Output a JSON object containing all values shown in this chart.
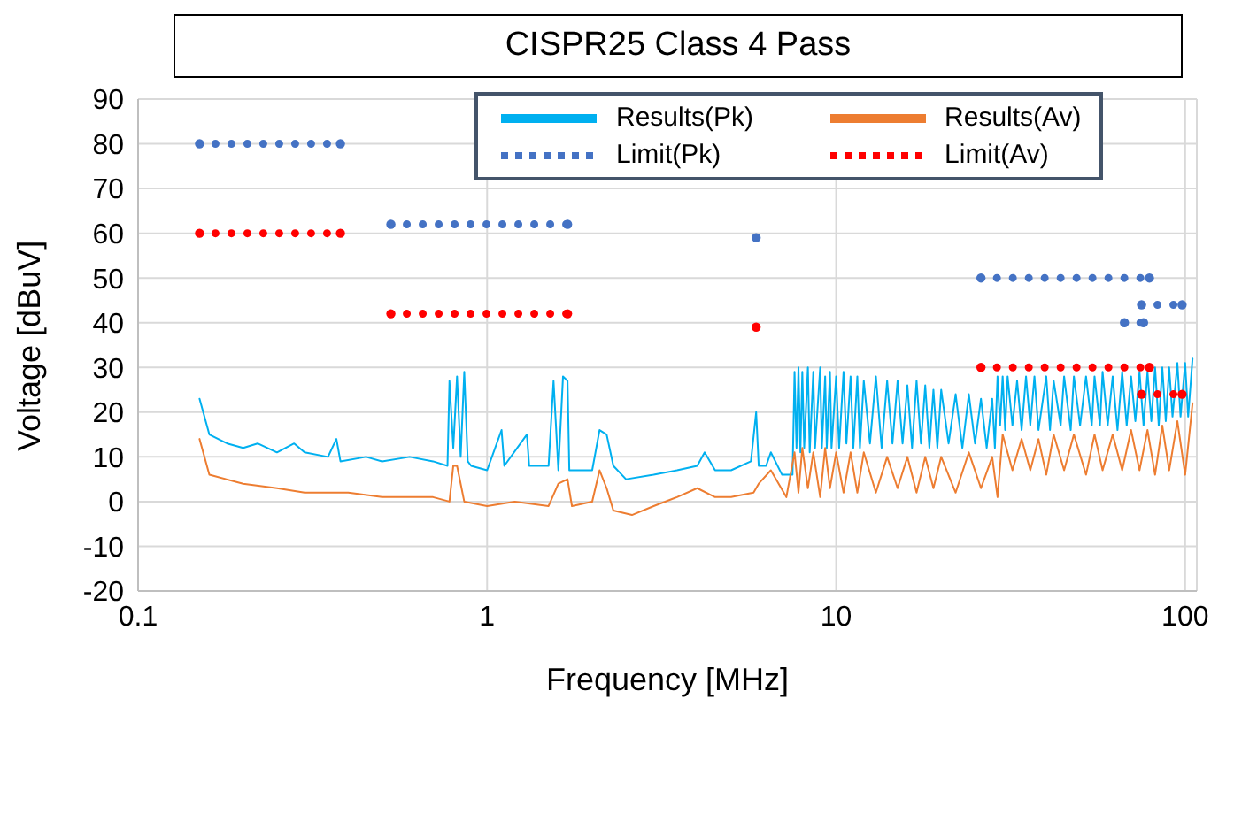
{
  "chart_data": {
    "type": "line",
    "title": "CISPR25 Class 4 Pass",
    "xlabel": "Frequency [MHz]",
    "ylabel": "Voltage [dBuV]",
    "log": "x",
    "xlim": [
      0.1,
      108
    ],
    "xticks": [
      0.1,
      1,
      10,
      100
    ],
    "ylim": [
      -20,
      90
    ],
    "yticks": [
      -20,
      -10,
      0,
      10,
      20,
      30,
      40,
      50,
      60,
      70,
      80,
      90
    ],
    "grid": true,
    "legend": "top",
    "series": [
      {
        "name": "Results(Pk)",
        "color": "#00b0f0",
        "marker": "none",
        "line_style": "solid",
        "x": [
          0.15,
          0.16,
          0.18,
          0.2,
          0.22,
          0.25,
          0.28,
          0.3,
          0.35,
          0.37,
          0.38,
          0.45,
          0.5,
          0.6,
          0.7,
          0.77,
          0.78,
          0.8,
          0.82,
          0.84,
          0.86,
          0.88,
          0.9,
          1.0,
          1.1,
          1.12,
          1.3,
          1.32,
          1.5,
          1.55,
          1.6,
          1.65,
          1.7,
          1.72,
          2.0,
          2.1,
          2.2,
          2.3,
          2.5,
          3,
          3.5,
          4,
          4.2,
          4.5,
          5,
          5.7,
          5.9,
          6.0,
          6.3,
          6.5,
          7,
          7.5,
          7.6,
          7.7,
          7.8,
          7.9,
          8,
          8.1,
          8.3,
          8.4,
          8.6,
          8.7,
          9,
          9.1,
          9.3,
          9.4,
          9.6,
          9.7,
          10,
          10.2,
          10.5,
          10.7,
          11,
          11.2,
          11.5,
          11.7,
          12,
          12.5,
          13,
          13.5,
          14,
          14.5,
          15,
          15.5,
          16,
          16.5,
          17,
          17.5,
          18,
          18.5,
          19,
          19.5,
          20,
          21,
          22,
          23,
          24,
          25,
          26,
          27,
          28,
          28.5,
          29,
          29.5,
          30,
          30.5,
          31,
          32,
          33,
          34,
          35,
          36,
          37,
          38,
          40,
          41,
          42,
          44,
          45,
          47,
          48,
          50,
          52,
          54,
          55,
          57,
          58,
          60,
          62,
          64,
          66,
          68,
          70,
          72,
          74,
          76,
          78,
          80,
          82,
          84,
          86,
          88,
          90,
          92,
          95,
          97,
          100,
          102,
          105
        ],
        "values": [
          23,
          15,
          13,
          12,
          13,
          11,
          13,
          11,
          10,
          14,
          9,
          10,
          9,
          10,
          9,
          8,
          27,
          12,
          28,
          10,
          29,
          9,
          8,
          7,
          16,
          8,
          15,
          8,
          8,
          27,
          7,
          28,
          27,
          7,
          7,
          16,
          15,
          8,
          5,
          6,
          7,
          8,
          11,
          7,
          7,
          9,
          20,
          8,
          8,
          11,
          6,
          6,
          29,
          12,
          30,
          11,
          29,
          12,
          30,
          11,
          29,
          12,
          30,
          12,
          28,
          12,
          29,
          12,
          28,
          12,
          29,
          13,
          28,
          12,
          28,
          12,
          27,
          13,
          28,
          12,
          27,
          13,
          27,
          13,
          26,
          12,
          27,
          13,
          26,
          12,
          25,
          12,
          25,
          13,
          24,
          12,
          24,
          13,
          23,
          12,
          23,
          12,
          28,
          17,
          28,
          16,
          28,
          17,
          27,
          16,
          28,
          17,
          28,
          16,
          28,
          16,
          27,
          17,
          28,
          16,
          28,
          17,
          28,
          17,
          28,
          17,
          29,
          17,
          28,
          16,
          29,
          17,
          28,
          18,
          29,
          17,
          29,
          18,
          30,
          17,
          30,
          18,
          30,
          19,
          31,
          19,
          31,
          19,
          32
        ]
      },
      {
        "name": "Results(Av)",
        "color": "#ed7d31",
        "marker": "none",
        "line_style": "solid",
        "x": [
          0.15,
          0.16,
          0.2,
          0.25,
          0.3,
          0.4,
          0.5,
          0.7,
          0.78,
          0.8,
          0.82,
          0.86,
          1,
          1.2,
          1.5,
          1.6,
          1.7,
          1.75,
          2.0,
          2.1,
          2.2,
          2.3,
          2.6,
          3,
          3.5,
          4,
          4.5,
          5,
          5.8,
          6,
          6.5,
          7.2,
          7.6,
          7.8,
          8,
          8.3,
          8.6,
          9,
          9.3,
          9.6,
          10,
          10.5,
          11,
          11.5,
          12,
          13,
          14,
          15,
          16,
          17,
          18,
          19,
          20,
          22,
          24,
          26,
          28,
          29,
          30,
          32,
          34,
          36,
          38,
          40,
          42,
          45,
          48,
          52,
          55,
          58,
          62,
          66,
          70,
          74,
          78,
          82,
          86,
          90,
          95,
          100,
          105
        ],
        "values": [
          14,
          6,
          4,
          3,
          2,
          2,
          1,
          1,
          0,
          8,
          8,
          0,
          -1,
          0,
          -1,
          4,
          5,
          -1,
          0,
          7,
          3,
          -2,
          -3,
          -1,
          1,
          3,
          1,
          1,
          2,
          4,
          7,
          1,
          11,
          2,
          12,
          3,
          11,
          1,
          12,
          3,
          11,
          2,
          11,
          2,
          11,
          2,
          10,
          3,
          10,
          2,
          10,
          3,
          10,
          2,
          11,
          3,
          10,
          1,
          15,
          7,
          14,
          7,
          14,
          6,
          15,
          7,
          15,
          6,
          15,
          7,
          15,
          7,
          16,
          7,
          16,
          6,
          17,
          7,
          18,
          6,
          22
        ]
      },
      {
        "name": "Limit(Pk)",
        "color": "#4472c4",
        "marker": "circle",
        "line_style": "dotted",
        "x": [
          0.15,
          0.38,
          0.45,
          0.53,
          1.7,
          3,
          5.9,
          15,
          26,
          79,
          72,
          67,
          76,
          75.5,
          75,
          98
        ],
        "values": [
          80,
          80,
          null,
          62,
          62,
          null,
          59,
          null,
          50,
          50,
          null,
          40,
          40,
          null,
          44,
          44
        ]
      },
      {
        "name": "Limit(Av)",
        "color": "#ff0000",
        "marker": "circle",
        "line_style": "dotted",
        "x": [
          0.15,
          0.38,
          0.45,
          0.53,
          1.7,
          3,
          5.9,
          15,
          26,
          79,
          77,
          75,
          98
        ],
        "values": [
          60,
          60,
          null,
          42,
          42,
          null,
          39,
          null,
          30,
          30,
          null,
          24,
          24
        ]
      }
    ]
  }
}
